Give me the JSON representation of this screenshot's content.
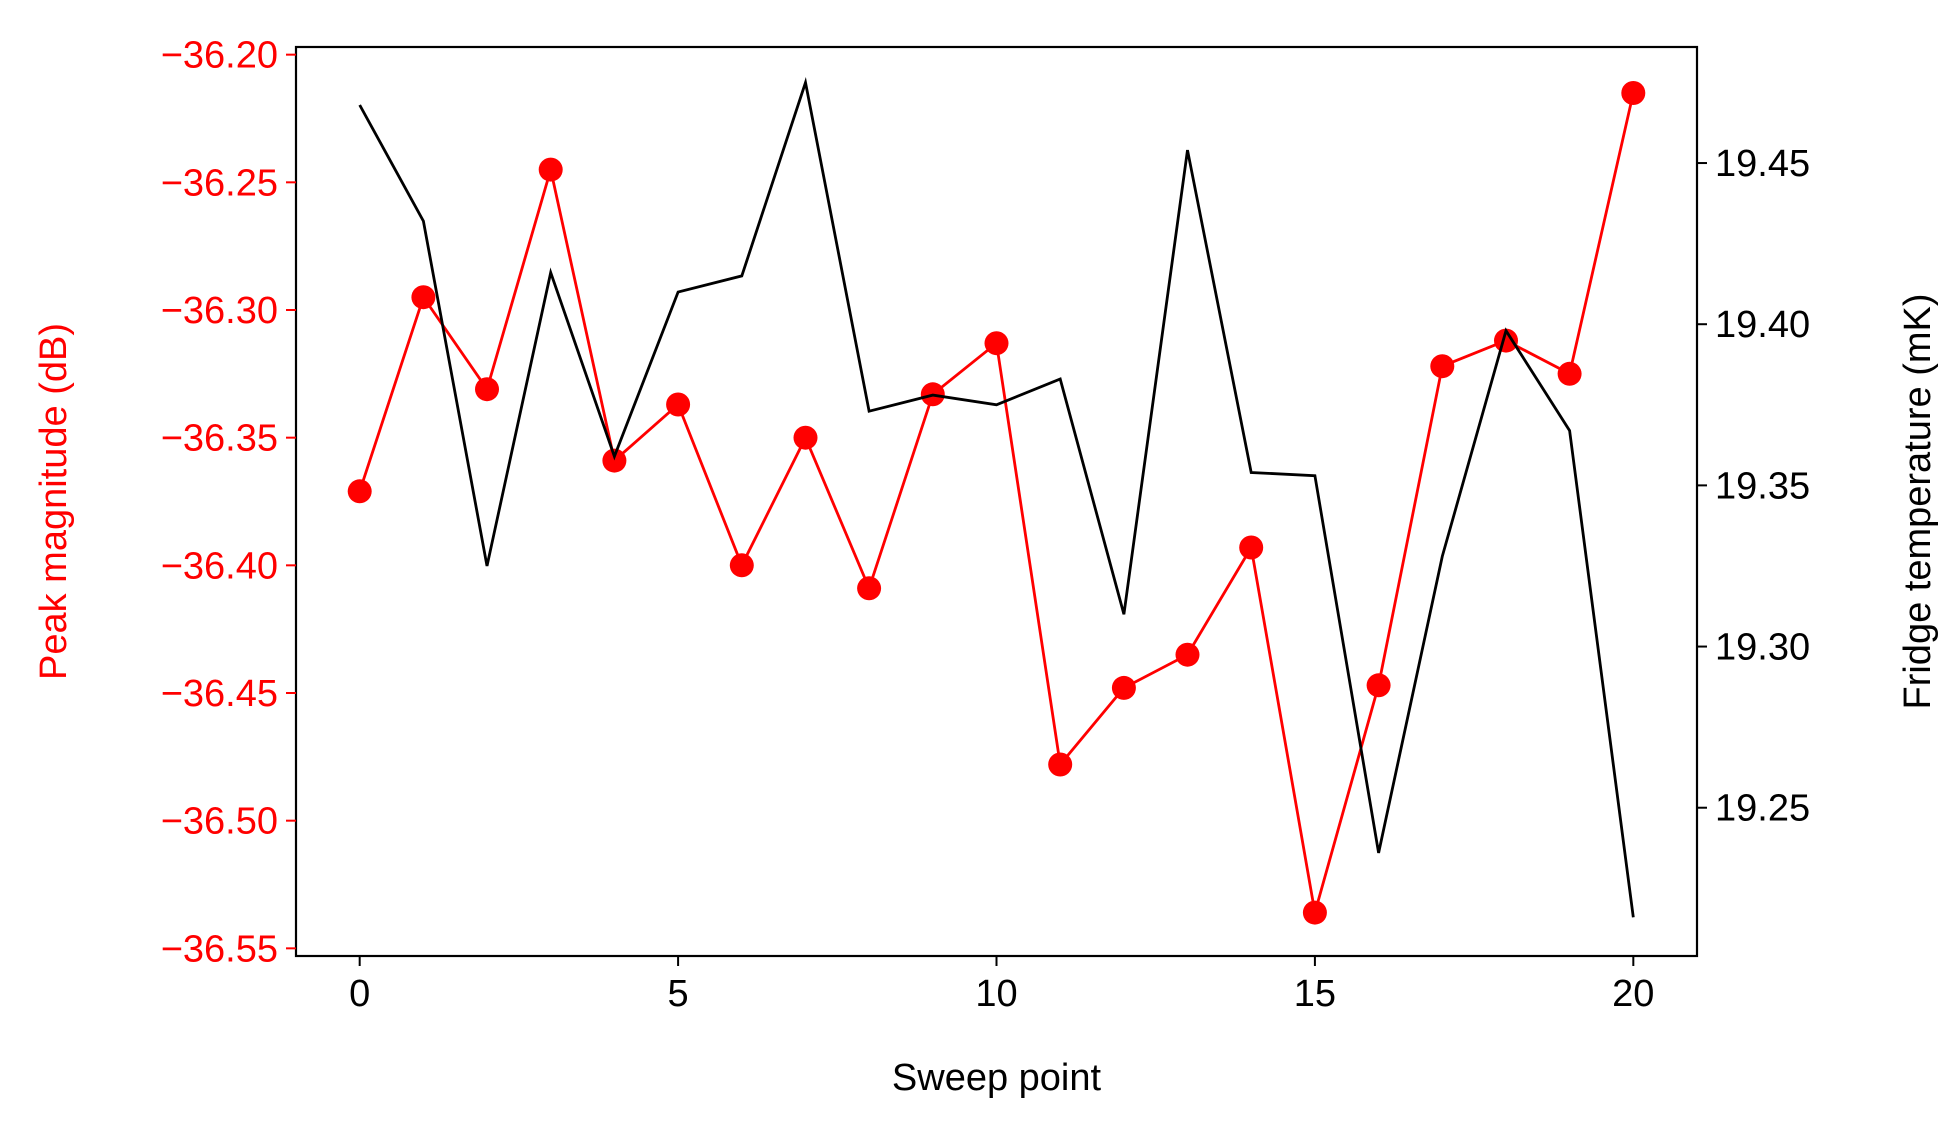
{
  "chart_data": {
    "type": "line",
    "xlabel": "Sweep point",
    "ylabel_left": "Peak magnitude (dB)",
    "ylabel_right": "Fridge temperature (mK)",
    "xlim": [
      -1,
      21
    ],
    "ylim_left": [
      -36.553,
      -36.197
    ],
    "ylim_right": [
      19.204,
      19.486
    ],
    "x_ticks": [
      0,
      5,
      10,
      15,
      20
    ],
    "x_tick_labels": [
      "0",
      "5",
      "10",
      "15",
      "20"
    ],
    "y_left_ticks": [
      -36.2,
      -36.25,
      -36.3,
      -36.35,
      -36.4,
      -36.45,
      -36.5,
      -36.55
    ],
    "y_left_tick_labels": [
      "−36.20",
      "−36.25",
      "−36.30",
      "−36.35",
      "−36.40",
      "−36.45",
      "−36.50",
      "−36.55"
    ],
    "y_right_ticks": [
      19.45,
      19.4,
      19.35,
      19.3,
      19.25
    ],
    "y_right_tick_labels": [
      "19.45",
      "19.40",
      "19.35",
      "19.30",
      "19.25"
    ],
    "grid": false,
    "colors": {
      "left_axis": "#ff0000",
      "right_axis": "#000000"
    },
    "x": [
      0,
      1,
      2,
      3,
      4,
      5,
      6,
      7,
      8,
      9,
      10,
      11,
      12,
      13,
      14,
      15,
      16,
      17,
      18,
      19,
      20
    ],
    "series": [
      {
        "axis": "left",
        "color": "#ff0000",
        "marker": "circle",
        "values": [
          -36.371,
          -36.295,
          -36.331,
          -36.245,
          -36.359,
          -36.337,
          -36.4,
          -36.35,
          -36.409,
          -36.333,
          -36.313,
          -36.478,
          -36.448,
          -36.435,
          -36.393,
          -36.536,
          -36.447,
          -36.322,
          -36.312,
          -36.325,
          -36.215
        ]
      },
      {
        "axis": "right",
        "color": "#000000",
        "marker": "none",
        "values": [
          19.468,
          19.432,
          19.325,
          19.416,
          19.359,
          19.41,
          19.415,
          19.475,
          19.373,
          19.378,
          19.375,
          19.383,
          19.31,
          19.454,
          19.354,
          19.353,
          19.236,
          19.328,
          19.398,
          19.367,
          19.216
        ]
      }
    ]
  }
}
